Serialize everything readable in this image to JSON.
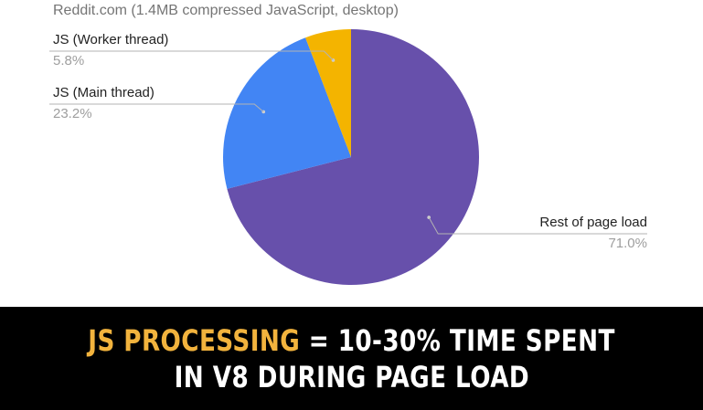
{
  "chart_data": {
    "type": "pie",
    "title": "Reddit.com (1.4MB compressed JavaScript, desktop)",
    "slices": [
      {
        "label": "Rest of page load",
        "value": 71.0,
        "percent_label": "71.0%",
        "color": "#6750ab"
      },
      {
        "label": "JS (Main thread)",
        "value": 23.2,
        "percent_label": "23.2%",
        "color": "#4285f4"
      },
      {
        "label": "JS (Worker thread)",
        "value": 5.8,
        "percent_label": "5.8%",
        "color": "#f4b400"
      }
    ],
    "start_angle_deg": 0,
    "direction": "clockwise",
    "legend": "none",
    "leader_line_color": "#b3b3b3"
  },
  "banner": {
    "highlight": "JS PROCESSING",
    "line1_rest": " = 10-30% TIME SPENT",
    "line2": "IN V8 DURING PAGE LOAD",
    "highlight_color": "#f2b33d",
    "text_color": "#ffffff",
    "background": "#000000"
  }
}
